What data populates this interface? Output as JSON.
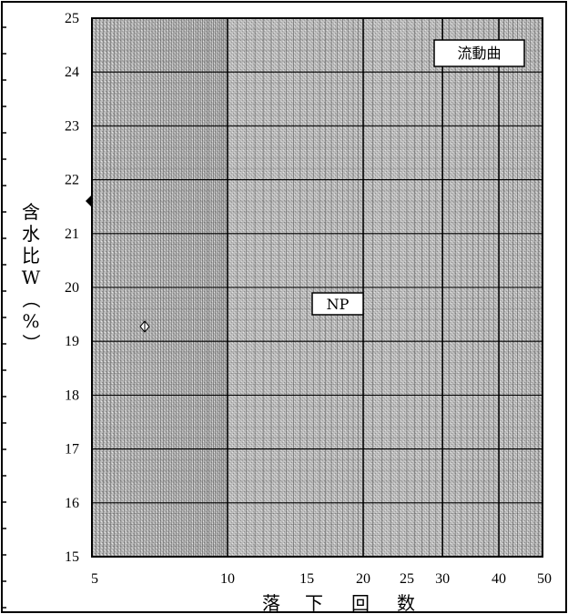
{
  "chart_data": {
    "type": "scatter",
    "x_scale": "log",
    "xlim": [
      5,
      50
    ],
    "ylim": [
      15,
      25
    ],
    "x_ticks": [
      "5",
      "10",
      "15",
      "20",
      "25",
      "30",
      "40",
      "50"
    ],
    "y_ticks": [
      "15",
      "16",
      "17",
      "18",
      "19",
      "20",
      "21",
      "22",
      "23",
      "24",
      "25"
    ],
    "ylabel_chars": [
      "含",
      "水",
      "比",
      "W",
      "（",
      "%",
      "）"
    ],
    "xlabel_chars": [
      "落",
      "下",
      "回",
      "数"
    ],
    "grid": true,
    "legend_box": "流動曲",
    "annotation": "NP",
    "series": []
  },
  "colors": {
    "plot_fill": "#b9b9b9",
    "grid_minor": "#5a5a5a",
    "grid_major": "#000000",
    "box_fill": "#ffffff"
  }
}
